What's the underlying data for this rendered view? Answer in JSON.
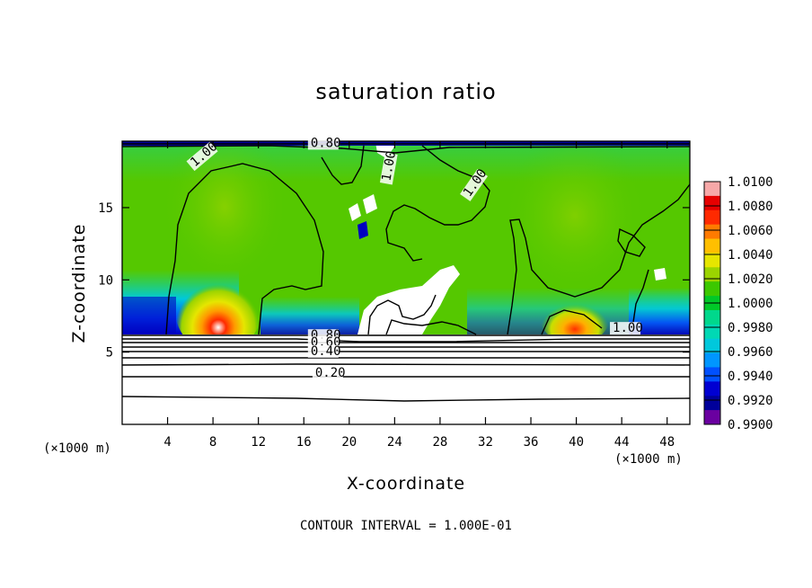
{
  "chart_data": {
    "type": "heatmap",
    "title": "saturation ratio",
    "xlabel": "X-coordinate",
    "ylabel": "Z-coordinate",
    "x_unit": "(×1000 m)",
    "x_ticks": [
      4,
      8,
      12,
      16,
      20,
      24,
      28,
      32,
      36,
      40,
      44,
      48
    ],
    "y_ticks": [
      5,
      10,
      15
    ],
    "xlim": [
      0,
      50
    ],
    "ylim": [
      0,
      19.6
    ],
    "colorbar": {
      "min": 0.99,
      "max": 1.01,
      "tick_labels": [
        "1.0100",
        "1.0080",
        "1.0060",
        "1.0040",
        "1.0020",
        "1.0000",
        "0.9980",
        "0.9960",
        "0.9940",
        "0.9920",
        "0.9900"
      ],
      "colors": [
        "#f7a8a8",
        "#e60000",
        "#ff2a00",
        "#ff7a00",
        "#ffbf00",
        "#e6e600",
        "#9bd400",
        "#3cc800",
        "#00c828",
        "#00d88c",
        "#00d8b4",
        "#00c8dc",
        "#0096ff",
        "#0050ff",
        "#0000d2",
        "#00009b",
        "#6a00a0"
      ]
    },
    "contour_labels": [
      {
        "text": "1.00",
        "x": 6.4,
        "z": 17.8
      },
      {
        "text": "1.00",
        "x": 23.6,
        "z": 16.8
      },
      {
        "text": "1.00",
        "x": 30.6,
        "z": 15.7
      },
      {
        "text": "1.00",
        "x": 43.2,
        "z": 6.4
      },
      {
        "text": "0.80",
        "x": 16.6,
        "z": 19.2
      },
      {
        "text": "0.80",
        "x": 16.6,
        "z": 5.9
      },
      {
        "text": "0.60",
        "x": 16.6,
        "z": 5.4
      },
      {
        "text": "0.40",
        "x": 16.6,
        "z": 4.8
      },
      {
        "text": "0.20",
        "x": 17.0,
        "z": 3.3
      }
    ],
    "contour_interval_note": "CONTOUR INTERVAL = 1.000E-01"
  }
}
